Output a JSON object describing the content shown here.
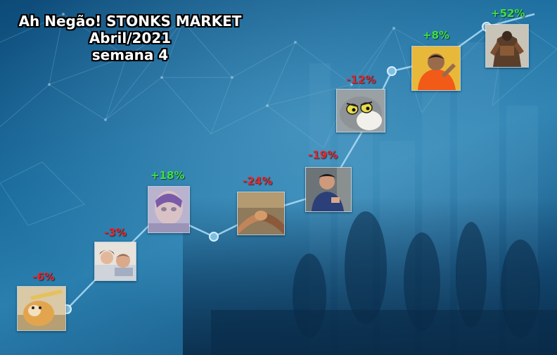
{
  "title": {
    "line1": "Ah Negão! STONKS MARKET",
    "line2": "Abril/2021",
    "line3": "semana 4"
  },
  "colors": {
    "positive": "#3fe03f",
    "negative": "#e5262b",
    "line": "#a9d8f2"
  },
  "stocks": [
    {
      "change": "-6%",
      "trend": "negative",
      "icon": "cheems-doge-meme"
    },
    {
      "change": "-3%",
      "trend": "negative",
      "icon": "couple-in-bed-meme"
    },
    {
      "change": "+18%",
      "trend": "positive",
      "icon": "blurred-face-meme"
    },
    {
      "change": "-24%",
      "trend": "negative",
      "icon": "epic-handshake-meme"
    },
    {
      "change": "-19%",
      "trend": "negative",
      "icon": "man-in-blue-hoodie-meme"
    },
    {
      "change": "-12%",
      "trend": "negative",
      "icon": "tom-cat-face-meme"
    },
    {
      "change": "+8%",
      "trend": "positive",
      "icon": "drake-approving-meme"
    },
    {
      "change": "+52%",
      "trend": "positive",
      "icon": "armored-warrior-meme"
    }
  ]
}
